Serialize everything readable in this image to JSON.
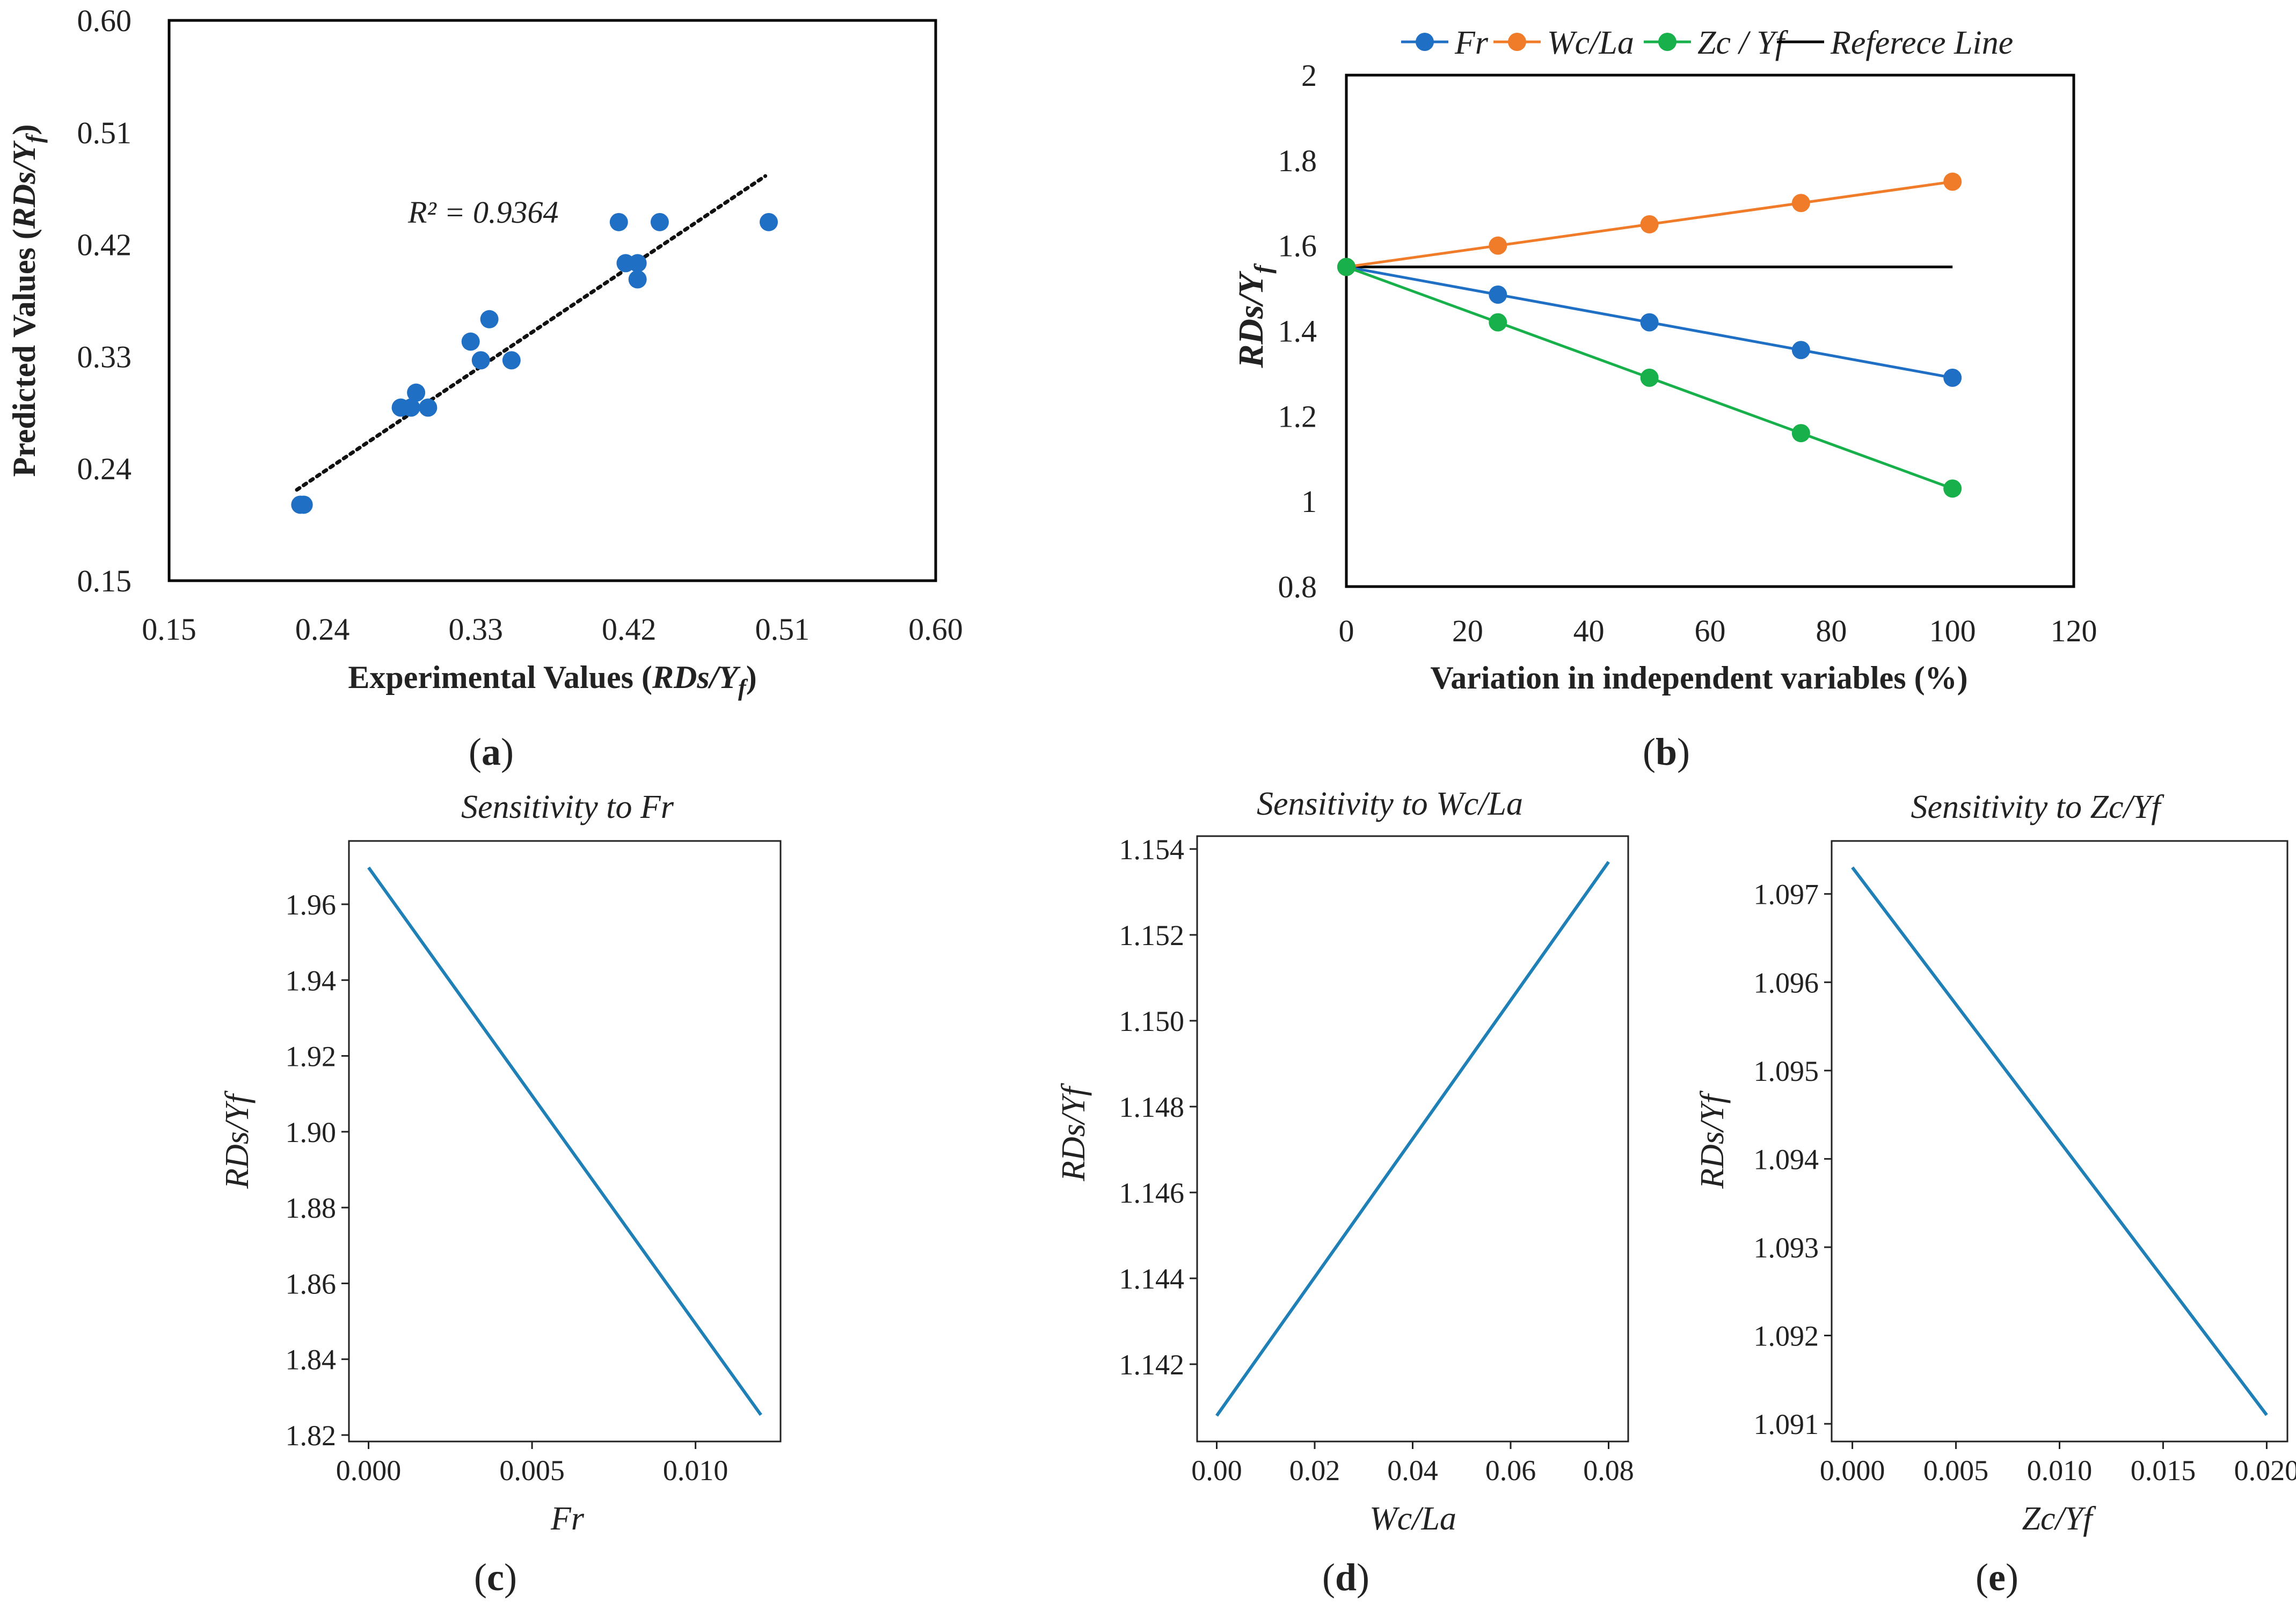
{
  "colors": {
    "marker_blue": "#1f6fc5",
    "orange": "#f07c2a",
    "green": "#18b04a",
    "black": "#000000",
    "mpl_line": "#1f80b8"
  },
  "chart_data": [
    {
      "panel": "a",
      "type": "scatter",
      "caption": "a",
      "xlabel": "Experimental Values (RDs/Yf)",
      "xlabel_prefix": "Experimental Values (",
      "xlabel_var": "RDs/Y",
      "xlabel_sub": "f",
      "xlabel_suffix": ")",
      "ylabel": "Predicted Values (RDs/Yf)",
      "ylabel_prefix": "Predicted Values (",
      "ylabel_var": "RDs/Y",
      "ylabel_sub": "f",
      "ylabel_suffix": ")",
      "xlim": [
        0.15,
        0.6
      ],
      "ylim": [
        0.15,
        0.6
      ],
      "xticks": [
        "0.15",
        "0.24",
        "0.33",
        "0.42",
        "0.51",
        "0.60"
      ],
      "yticks": [
        "0.15",
        "0.24",
        "0.33",
        "0.42",
        "0.51",
        "0.60"
      ],
      "annotation": "R² = 0.9364",
      "x": [
        0.227,
        0.229,
        0.286,
        0.292,
        0.295,
        0.302,
        0.327,
        0.333,
        0.338,
        0.351,
        0.414,
        0.418,
        0.425,
        0.425,
        0.438,
        0.502
      ],
      "y": [
        0.211,
        0.211,
        0.289,
        0.289,
        0.301,
        0.289,
        0.342,
        0.327,
        0.36,
        0.327,
        0.438,
        0.405,
        0.405,
        0.392,
        0.438,
        0.438
      ],
      "trendline": {
        "x": [
          0.225,
          0.5
        ],
        "y": [
          0.223,
          0.475
        ]
      }
    },
    {
      "panel": "b",
      "type": "line",
      "caption": "b",
      "xlabel": "Variation in independent variables (%)",
      "ylabel": "RDs/Yf",
      "ylabel_var": "RDs/Y",
      "ylabel_sub": "f",
      "xlim": [
        0,
        120
      ],
      "ylim": [
        0.8,
        2
      ],
      "xticks": [
        "0",
        "20",
        "40",
        "60",
        "80",
        "100",
        "120"
      ],
      "yticks": [
        "0.8",
        "1",
        "1.2",
        "1.4",
        "1.6",
        "1.8",
        "2"
      ],
      "x": [
        0,
        25,
        50,
        75,
        100
      ],
      "series": [
        {
          "name": "Fr",
          "values": [
            1.55,
            1.485,
            1.42,
            1.355,
            1.29
          ],
          "color": "#1f6fc5",
          "markers": true
        },
        {
          "name": "Wc/La",
          "values": [
            1.55,
            1.6,
            1.65,
            1.7,
            1.75
          ],
          "color": "#f07c2a",
          "markers": true
        },
        {
          "name": "Zc / Yf",
          "values": [
            1.55,
            1.42,
            1.29,
            1.16,
            1.03
          ],
          "color": "#18b04a",
          "markers": true
        },
        {
          "name": "Referece Line",
          "values": [
            1.55,
            1.55,
            1.55,
            1.55,
            1.55
          ],
          "color": "#000000",
          "markers": false
        }
      ],
      "legend_position": "top"
    },
    {
      "panel": "c",
      "type": "line",
      "caption": "c",
      "title": "Sensitivity to Fr",
      "xlabel": "Fr",
      "ylabel": "RDs/Yf",
      "xlim": [
        -0.0006,
        0.0126
      ],
      "ylim": [
        1.8183,
        1.9767
      ],
      "xticks": [
        {
          "v": 0,
          "label": "0.000"
        },
        {
          "v": 0.005,
          "label": "0.005"
        },
        {
          "v": 0.01,
          "label": "0.010"
        }
      ],
      "yticks": [
        {
          "v": 1.82,
          "label": "1.82"
        },
        {
          "v": 1.84,
          "label": "1.84"
        },
        {
          "v": 1.86,
          "label": "1.86"
        },
        {
          "v": 1.88,
          "label": "1.88"
        },
        {
          "v": 1.9,
          "label": "1.90"
        },
        {
          "v": 1.92,
          "label": "1.92"
        },
        {
          "v": 1.94,
          "label": "1.94"
        },
        {
          "v": 1.96,
          "label": "1.96"
        }
      ],
      "x": [
        0,
        0.012
      ],
      "values": [
        1.9697,
        1.8253
      ]
    },
    {
      "panel": "d",
      "type": "line",
      "caption": "d",
      "title": "Sensitivity to Wc/La",
      "xlabel": "Wc/La",
      "ylabel": "RDs/Yf",
      "xlim": [
        -0.004,
        0.084
      ],
      "ylim": [
        1.1402,
        1.1543
      ],
      "xticks": [
        {
          "v": 0,
          "label": "0.00"
        },
        {
          "v": 0.02,
          "label": "0.02"
        },
        {
          "v": 0.04,
          "label": "0.04"
        },
        {
          "v": 0.06,
          "label": "0.06"
        },
        {
          "v": 0.08,
          "label": "0.08"
        }
      ],
      "yticks": [
        {
          "v": 1.142,
          "label": "1.142"
        },
        {
          "v": 1.144,
          "label": "1.144"
        },
        {
          "v": 1.146,
          "label": "1.146"
        },
        {
          "v": 1.148,
          "label": "1.148"
        },
        {
          "v": 1.15,
          "label": "1.150"
        },
        {
          "v": 1.152,
          "label": "1.152"
        },
        {
          "v": 1.154,
          "label": "1.154"
        }
      ],
      "x": [
        0,
        0.08
      ],
      "values": [
        1.1408,
        1.1537
      ]
    },
    {
      "panel": "e",
      "type": "line",
      "caption": "e",
      "title": "Sensitivity to Zc/Yf",
      "xlabel": "Zc/Yf",
      "ylabel": "RDs/Yf",
      "xlim": [
        -0.001,
        0.021
      ],
      "ylim": [
        1.0908,
        1.0976
      ],
      "xticks": [
        {
          "v": 0,
          "label": "0.000"
        },
        {
          "v": 0.005,
          "label": "0.005"
        },
        {
          "v": 0.01,
          "label": "0.010"
        },
        {
          "v": 0.015,
          "label": "0.015"
        },
        {
          "v": 0.02,
          "label": "0.020"
        }
      ],
      "yticks": [
        {
          "v": 1.091,
          "label": "1.091"
        },
        {
          "v": 1.092,
          "label": "1.092"
        },
        {
          "v": 1.093,
          "label": "1.093"
        },
        {
          "v": 1.094,
          "label": "1.094"
        },
        {
          "v": 1.095,
          "label": "1.095"
        },
        {
          "v": 1.096,
          "label": "1.096"
        },
        {
          "v": 1.097,
          "label": "1.097"
        }
      ],
      "x": [
        0,
        0.02
      ],
      "values": [
        1.0973,
        1.0911
      ]
    }
  ]
}
